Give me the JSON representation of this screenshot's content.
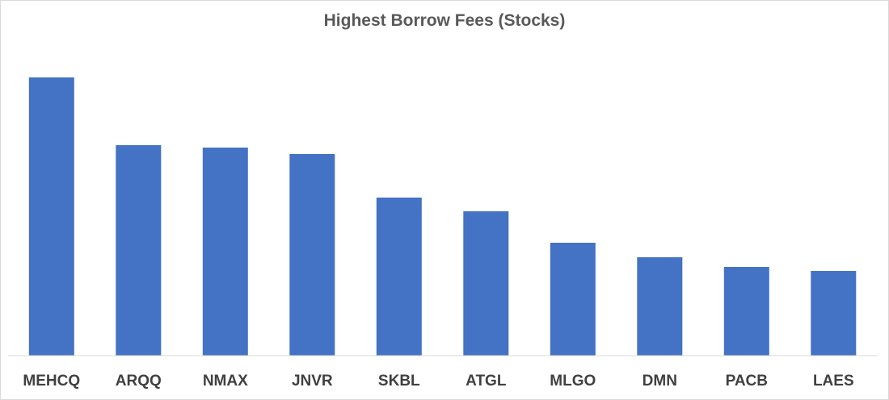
{
  "chart_data": {
    "type": "bar",
    "title": "Highest Borrow Fees (Stocks)",
    "categories": [
      "MEHCQ",
      "ARQQ",
      "NMAX",
      "JNVR",
      "SKBL",
      "ATGL",
      "MLGO",
      "DMN",
      "PACB",
      "LAES"
    ],
    "values": [
      345,
      261,
      258,
      250,
      196,
      179,
      140,
      122,
      110,
      105
    ],
    "ylim": [
      0,
      380
    ],
    "grid": false,
    "legend": "none",
    "colors": {
      "bar": "#4472C4",
      "axis": "#d9d9d9",
      "title": "#595959",
      "labels": "#404040"
    }
  }
}
